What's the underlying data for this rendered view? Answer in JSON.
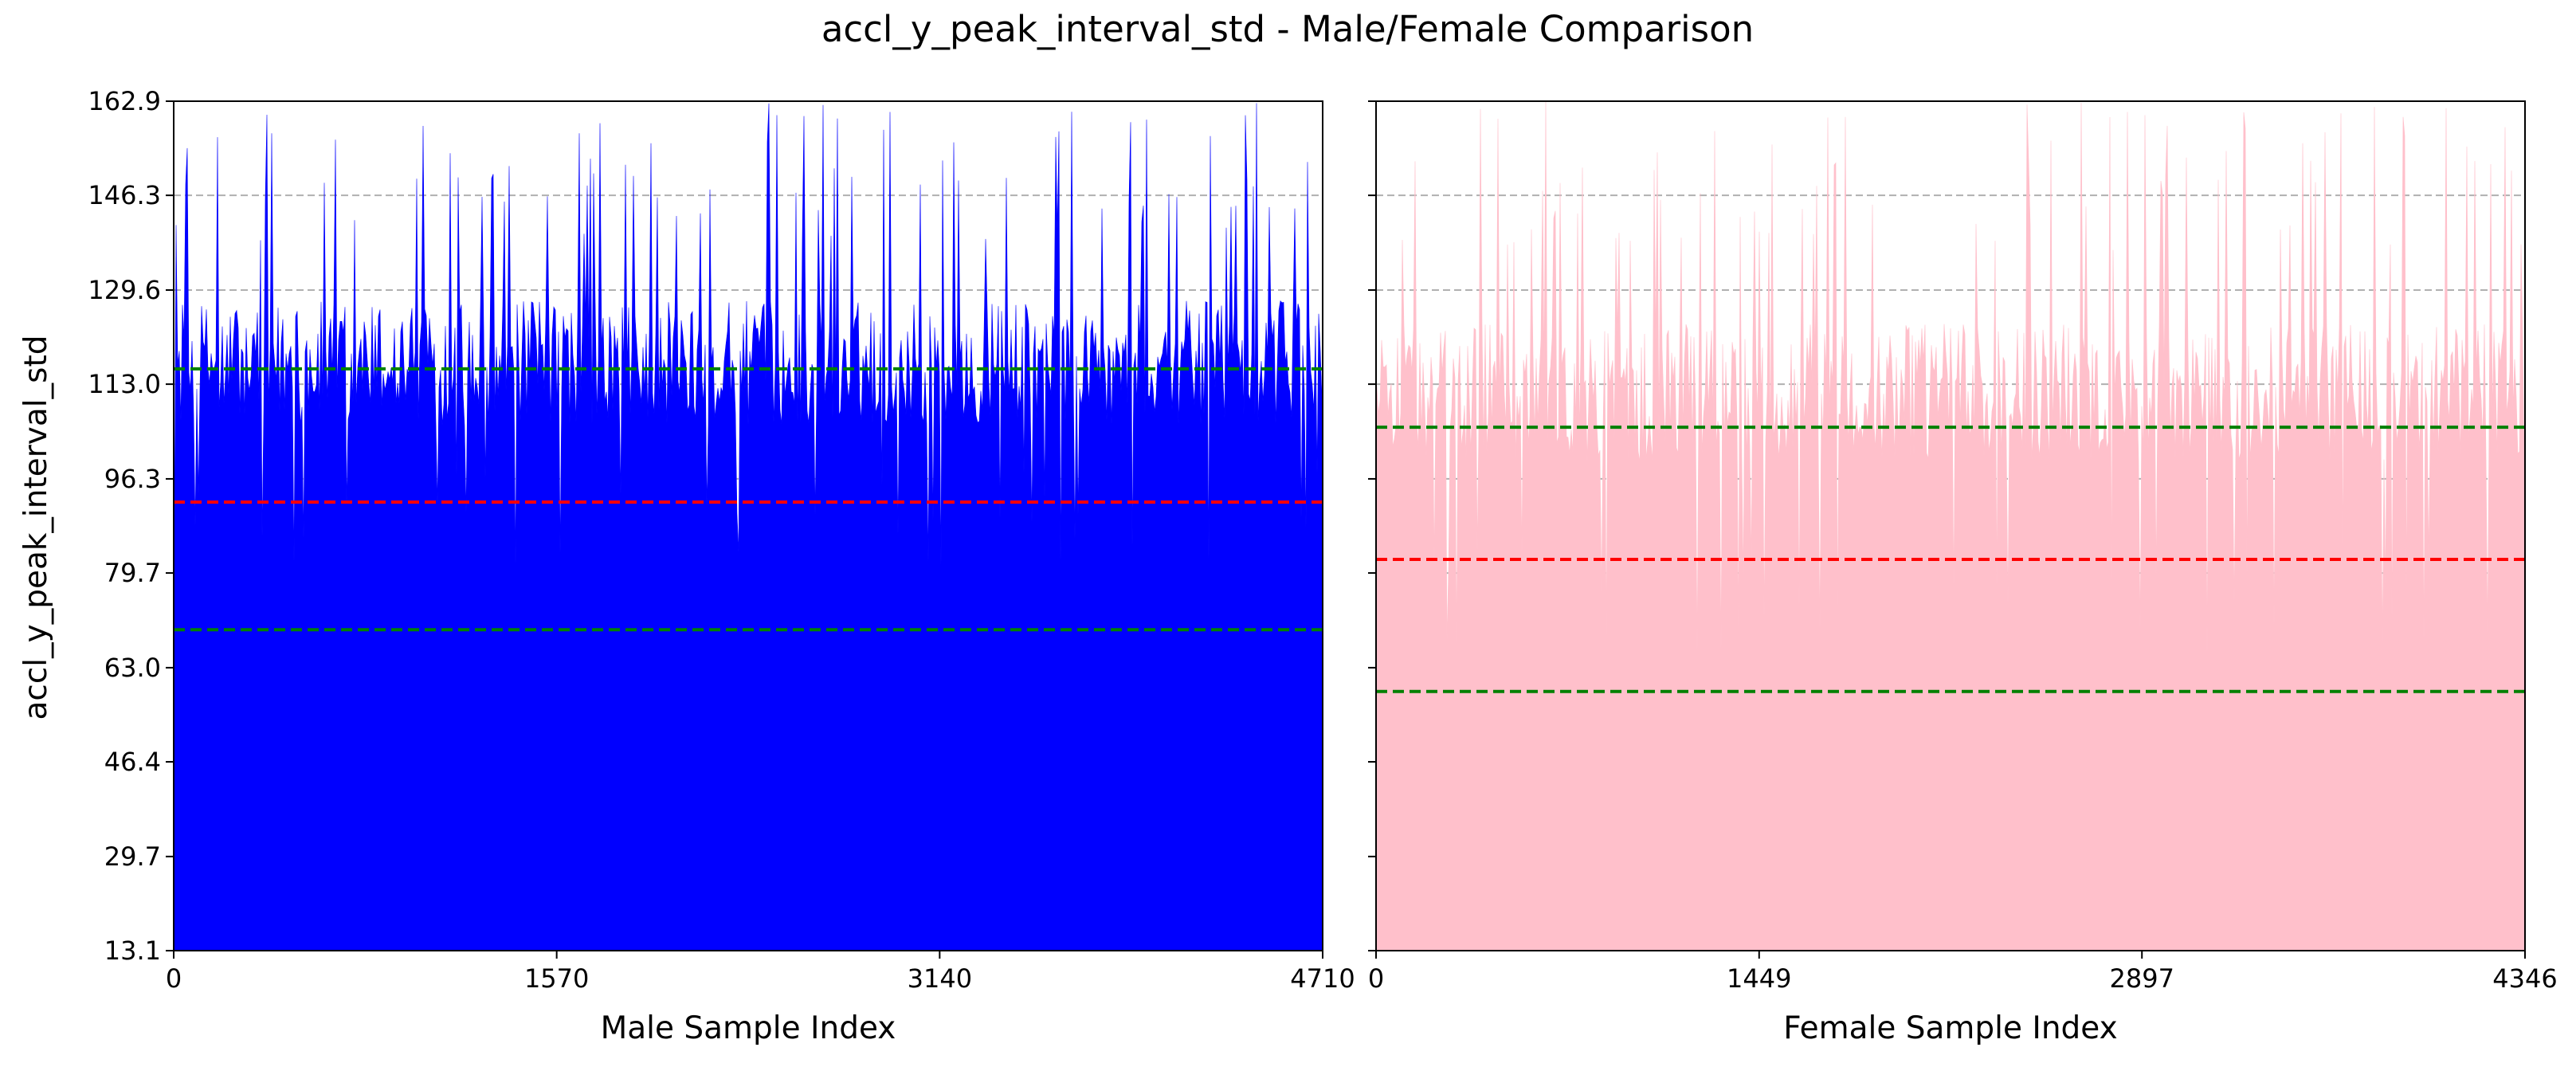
{
  "chart_data": {
    "type": "bar",
    "title": "accl_y_peak_interval_std - Male/Female Comparison",
    "ylabel": "accl_y_peak_interval_std",
    "ylim": [
      13.1,
      162.9
    ],
    "yticks": [
      "13.1",
      "29.7",
      "46.4",
      "63.0",
      "79.7",
      "96.3",
      "113.0",
      "129.6",
      "146.3",
      "162.9"
    ],
    "grid": "horizontal dashed",
    "panels": [
      {
        "xlabel": "Male Sample Index",
        "xlim": [
          0,
          4710
        ],
        "xticks": [
          "0",
          "1570",
          "3140",
          "4710"
        ],
        "bar_color": "#0000ff",
        "sample_count": 4710,
        "value_range": [
          75,
          162.9
        ],
        "lines": [
          {
            "value": 115.7,
            "color": "#008000",
            "style": "dashed"
          },
          {
            "value": 92.2,
            "color": "#ff0000",
            "style": "dashed"
          },
          {
            "value": 69.7,
            "color": "#008000",
            "style": "dashed"
          }
        ]
      },
      {
        "xlabel": "Female Sample Index",
        "xlim": [
          0,
          4346
        ],
        "xticks": [
          "0",
          "1449",
          "2897",
          "4346"
        ],
        "bar_color": "#ffc0cb",
        "sample_count": 4346,
        "value_range": [
          65,
          162.9
        ],
        "lines": [
          {
            "value": 105.4,
            "color": "#008000",
            "style": "dashed"
          },
          {
            "value": 82.1,
            "color": "#ff0000",
            "style": "dashed"
          },
          {
            "value": 58.8,
            "color": "#008000",
            "style": "dashed"
          }
        ]
      }
    ]
  }
}
